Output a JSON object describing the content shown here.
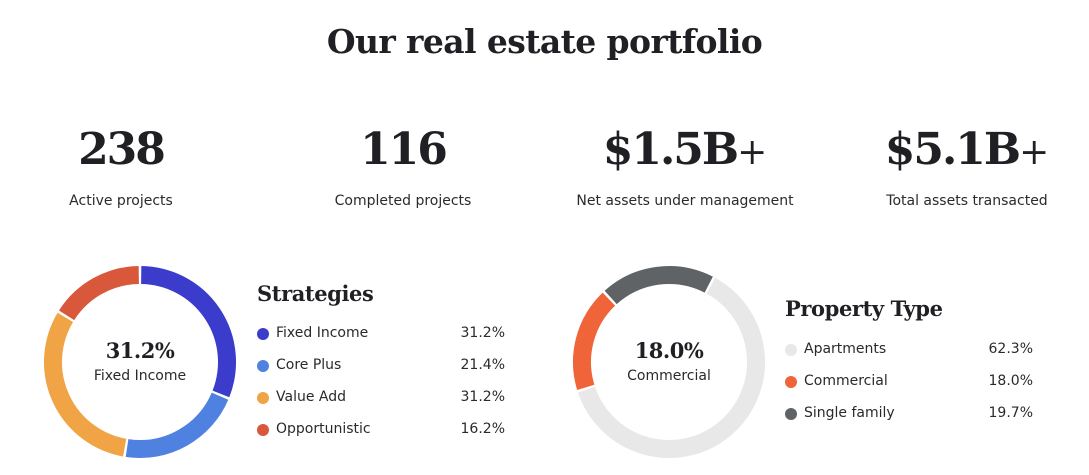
{
  "title": "Our real estate portfolio",
  "stats": [
    {
      "value": "238",
      "suffix": "",
      "label": "Active projects"
    },
    {
      "value": "116",
      "suffix": "",
      "label": "Completed projects"
    },
    {
      "value": "$1.5B",
      "suffix": "+",
      "label": "Net assets under management"
    },
    {
      "value": "$5.1B",
      "suffix": "+",
      "label": "Total assets transacted"
    }
  ],
  "chart_data": [
    {
      "type": "pie",
      "variant": "donut",
      "title": "Strategies",
      "center_value": "31.2%",
      "center_label": "Fixed Income",
      "categories": [
        "Fixed Income",
        "Core Plus",
        "Value Add",
        "Opportunistic"
      ],
      "values": [
        31.2,
        21.4,
        31.2,
        16.2
      ],
      "value_labels": [
        "31.2%",
        "21.4%",
        "31.2%",
        "16.2%"
      ],
      "colors": [
        "#3b3bcc",
        "#4f82e0",
        "#f0a445",
        "#d9573a"
      ],
      "legend": "right"
    },
    {
      "type": "pie",
      "variant": "donut",
      "title": "Property Type",
      "center_value": "18.0%",
      "center_label": "Commercial",
      "categories": [
        "Apartments",
        "Commercial",
        "Single family"
      ],
      "values": [
        62.3,
        18.0,
        19.7
      ],
      "value_labels": [
        "62.3%",
        "18.0%",
        "19.7%"
      ],
      "colors": [
        "#e8e8e8",
        "#f0643a",
        "#606366"
      ],
      "legend": "right"
    }
  ]
}
